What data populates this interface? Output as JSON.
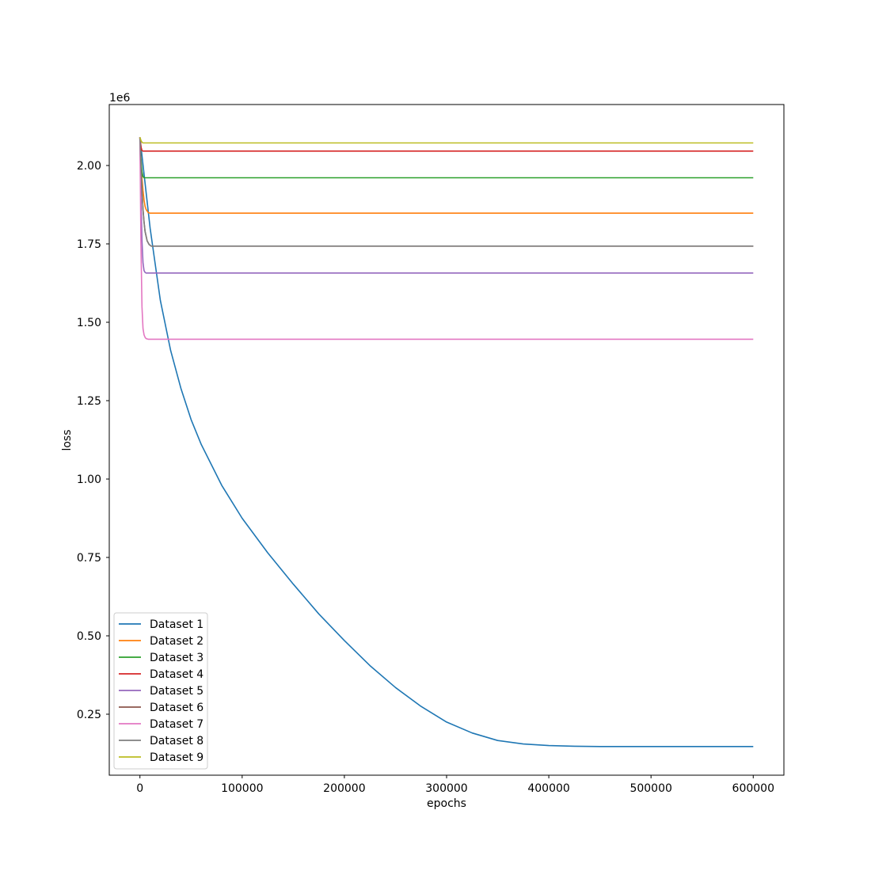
{
  "chart_data": {
    "type": "line",
    "title": "",
    "xlabel": "epochs",
    "ylabel": "loss",
    "y_offset_label": "1e6",
    "xlim": [
      -30000,
      630000
    ],
    "ylim": [
      0.0555,
      2.1945
    ],
    "x_ticks": [
      0,
      100000,
      200000,
      300000,
      400000,
      500000,
      600000
    ],
    "x_tick_labels": [
      "0",
      "100000",
      "200000",
      "300000",
      "400000",
      "500000",
      "600000"
    ],
    "y_ticks": [
      0.25,
      0.5,
      0.75,
      1.0,
      1.25,
      1.5,
      1.75,
      2.0
    ],
    "y_tick_labels": [
      "0.25",
      "0.50",
      "0.75",
      "1.00",
      "1.25",
      "1.50",
      "1.75",
      "2.00"
    ],
    "grid": false,
    "legend_position": "lower-left",
    "series": [
      {
        "name": "Dataset 1",
        "color": "#1f77b4",
        "x": [
          0,
          10000,
          20000,
          30000,
          40000,
          50000,
          60000,
          80000,
          100000,
          125000,
          150000,
          175000,
          200000,
          225000,
          250000,
          275000,
          300000,
          325000,
          350000,
          375000,
          400000,
          425000,
          450000,
          500000,
          550000,
          600000
        ],
        "y": [
          2.09,
          1.8,
          1.57,
          1.41,
          1.29,
          1.19,
          1.11,
          0.98,
          0.875,
          0.765,
          0.665,
          0.57,
          0.485,
          0.405,
          0.335,
          0.275,
          0.225,
          0.19,
          0.166,
          0.155,
          0.15,
          0.148,
          0.147,
          0.147,
          0.147,
          0.147
        ]
      },
      {
        "name": "Dataset 2",
        "color": "#ff7f0e",
        "x": [
          0,
          1000,
          2000,
          3000,
          4000,
          5000,
          6000,
          8000,
          10000,
          600000
        ],
        "y": [
          2.09,
          2.02,
          1.96,
          1.92,
          1.89,
          1.87,
          1.86,
          1.85,
          1.848,
          1.848
        ]
      },
      {
        "name": "Dataset 3",
        "color": "#2ca02c",
        "x": [
          0,
          1000,
          2000,
          3000,
          4000,
          600000
        ],
        "y": [
          2.09,
          2.02,
          1.98,
          1.965,
          1.961,
          1.961
        ]
      },
      {
        "name": "Dataset 4",
        "color": "#d62728",
        "x": [
          0,
          1000,
          2000,
          3000,
          600000
        ],
        "y": [
          2.09,
          2.06,
          2.048,
          2.046,
          2.046
        ]
      },
      {
        "name": "Dataset 5",
        "color": "#9467bd",
        "x": [
          0,
          1000,
          2000,
          3000,
          4000,
          5000,
          6000,
          600000
        ],
        "y": [
          2.09,
          1.9,
          1.76,
          1.69,
          1.665,
          1.659,
          1.657,
          1.657
        ]
      },
      {
        "name": "Dataset 6",
        "color": "#8c564b",
        "x": [
          0,
          1000,
          2000,
          3000,
          4000,
          5000,
          7000,
          9000,
          11000,
          600000
        ],
        "y": [
          2.09,
          2.0,
          1.92,
          1.86,
          1.82,
          1.79,
          1.76,
          1.748,
          1.743,
          1.743
        ]
      },
      {
        "name": "Dataset 7",
        "color": "#e377c2",
        "x": [
          0,
          1000,
          2000,
          3000,
          4000,
          5000,
          6000,
          8000,
          600000
        ],
        "y": [
          2.09,
          1.75,
          1.55,
          1.48,
          1.46,
          1.452,
          1.448,
          1.446,
          1.446
        ]
      },
      {
        "name": "Dataset 8",
        "color": "#7f7f7f",
        "x": [
          0,
          1000,
          2000,
          3000,
          4000,
          5000,
          7000,
          9000,
          11000,
          600000
        ],
        "y": [
          2.09,
          2.0,
          1.92,
          1.86,
          1.82,
          1.79,
          1.76,
          1.748,
          1.743,
          1.743
        ]
      },
      {
        "name": "Dataset 9",
        "color": "#bcbd22",
        "x": [
          0,
          1000,
          2000,
          3000,
          600000
        ],
        "y": [
          2.09,
          2.08,
          2.074,
          2.072,
          2.072
        ]
      }
    ]
  }
}
